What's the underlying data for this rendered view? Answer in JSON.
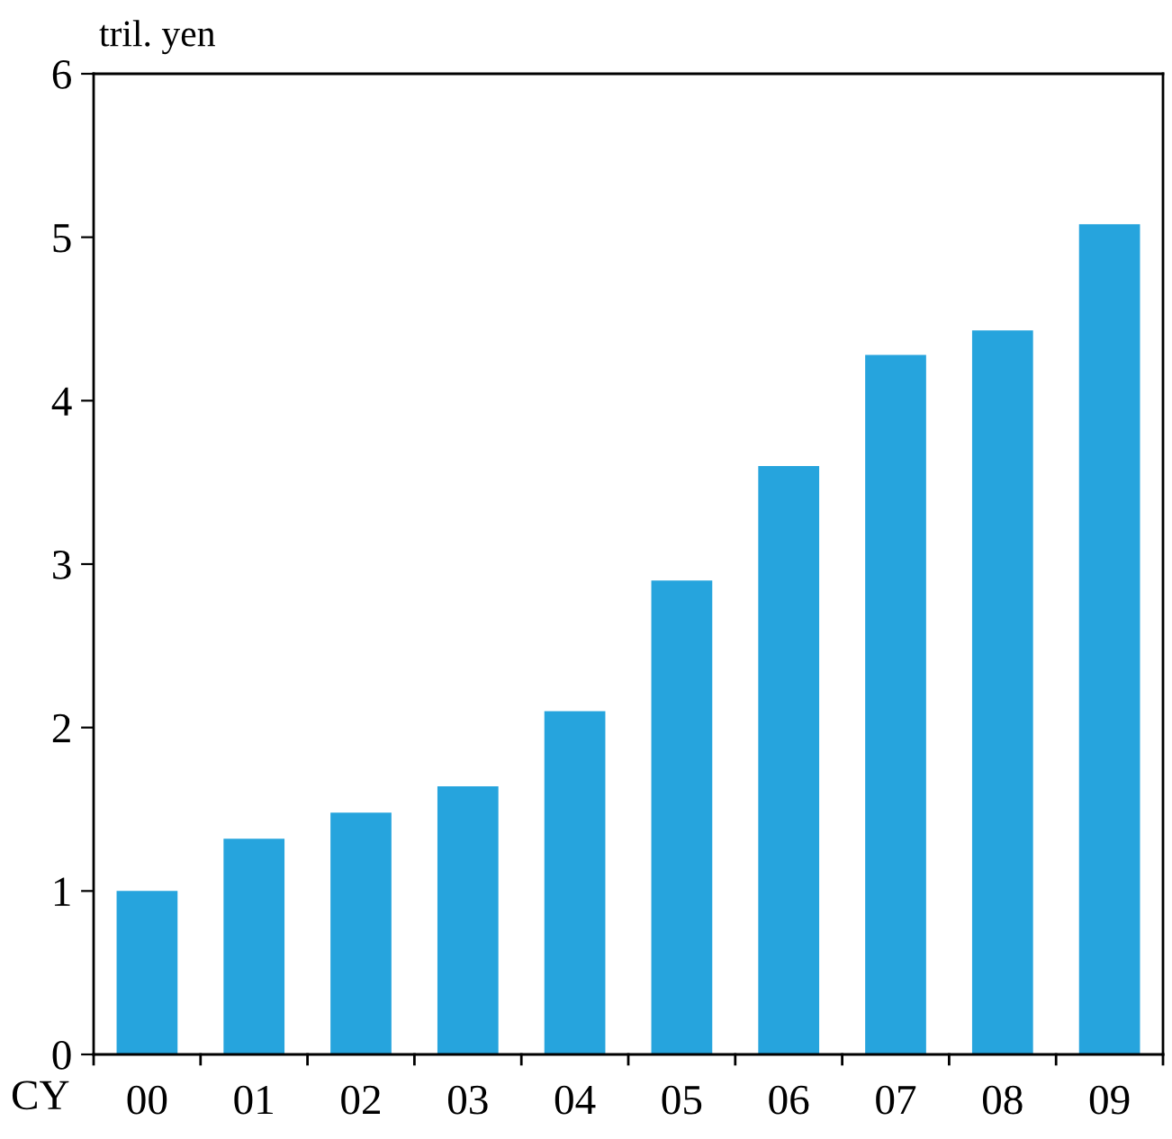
{
  "chart_data": {
    "type": "bar",
    "ylabel": "tril. yen",
    "xlabel": "CY",
    "categories": [
      "00",
      "01",
      "02",
      "03",
      "04",
      "05",
      "06",
      "07",
      "08",
      "09"
    ],
    "values": [
      1.0,
      1.32,
      1.48,
      1.64,
      2.1,
      2.9,
      3.6,
      4.28,
      4.43,
      5.08
    ],
    "color": "#26a4dd",
    "ylim": [
      0,
      6
    ],
    "yticks": [
      0,
      1,
      2,
      3,
      4,
      5,
      6
    ],
    "grid": false,
    "legend": false
  }
}
